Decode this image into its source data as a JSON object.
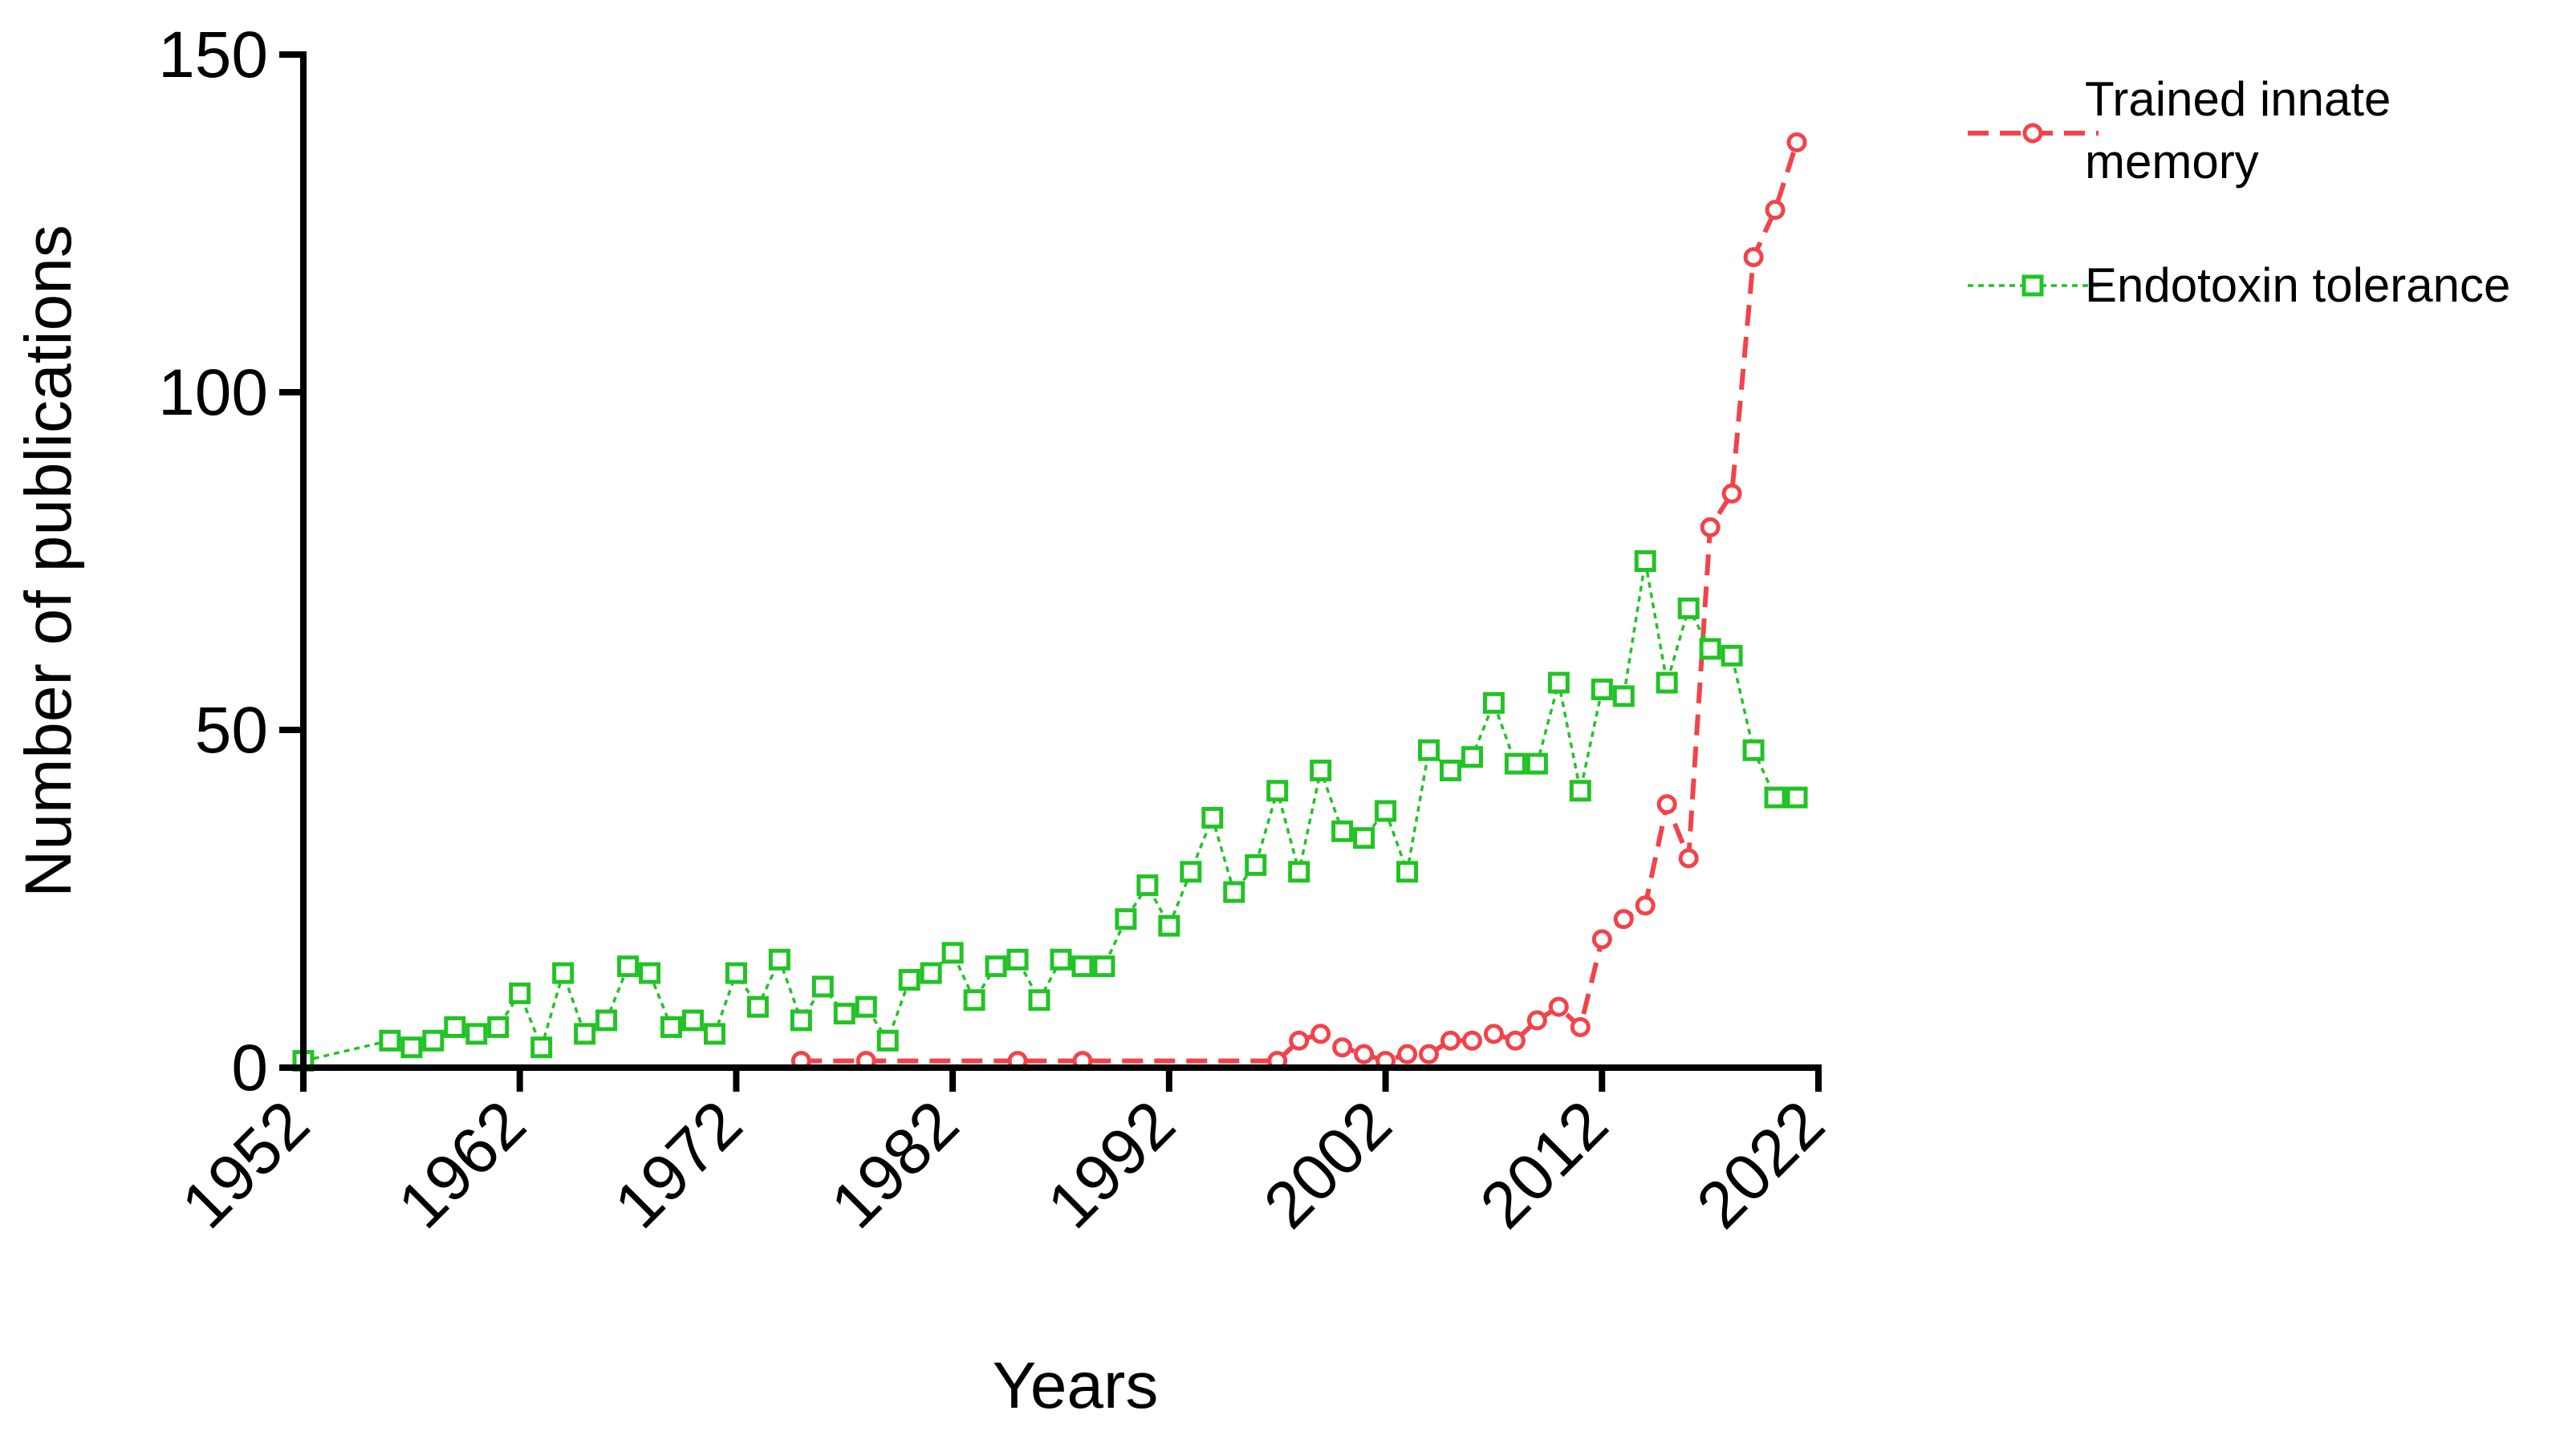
{
  "chart_data": {
    "type": "line",
    "title": "",
    "xlabel": "Years",
    "ylabel": "Number of publications",
    "xlim": [
      1952,
      2022
    ],
    "ylim": [
      0,
      150
    ],
    "x_ticks": [
      "1952",
      "1962",
      "1972",
      "1982",
      "1992",
      "2002",
      "2012",
      "2022"
    ],
    "y_ticks": [
      "0",
      "50",
      "100",
      "150"
    ],
    "grid": false,
    "legend_position": "top-right",
    "series": [
      {
        "name": "Trained innate memory",
        "color": "#f2434a",
        "marker": "circle",
        "line_style": "dashed",
        "points": [
          [
            1975,
            1
          ],
          [
            1978,
            1
          ],
          [
            1985,
            1
          ],
          [
            1988,
            1
          ],
          [
            1997,
            1
          ],
          [
            1998,
            4
          ],
          [
            1999,
            5
          ],
          [
            2000,
            3
          ],
          [
            2001,
            2
          ],
          [
            2002,
            1
          ],
          [
            2003,
            2
          ],
          [
            2004,
            2
          ],
          [
            2005,
            4
          ],
          [
            2006,
            4
          ],
          [
            2007,
            5
          ],
          [
            2008,
            4
          ],
          [
            2009,
            7
          ],
          [
            2010,
            9
          ],
          [
            2011,
            6
          ],
          [
            2012,
            19
          ],
          [
            2013,
            22
          ],
          [
            2014,
            24
          ],
          [
            2015,
            39
          ],
          [
            2016,
            31
          ],
          [
            2017,
            80
          ],
          [
            2018,
            85
          ],
          [
            2019,
            120
          ],
          [
            2020,
            127
          ],
          [
            2021,
            137
          ]
        ]
      },
      {
        "name": "Endotoxin tolerance",
        "color": "#22c325",
        "marker": "square",
        "line_style": "dotted",
        "points": [
          [
            1952,
            1
          ],
          [
            1956,
            4
          ],
          [
            1957,
            3
          ],
          [
            1958,
            4
          ],
          [
            1959,
            6
          ],
          [
            1960,
            5
          ],
          [
            1961,
            6
          ],
          [
            1962,
            11
          ],
          [
            1963,
            3
          ],
          [
            1964,
            14
          ],
          [
            1965,
            5
          ],
          [
            1966,
            7
          ],
          [
            1967,
            15
          ],
          [
            1968,
            14
          ],
          [
            1969,
            6
          ],
          [
            1970,
            7
          ],
          [
            1971,
            5
          ],
          [
            1972,
            14
          ],
          [
            1973,
            9
          ],
          [
            1974,
            16
          ],
          [
            1975,
            7
          ],
          [
            1976,
            12
          ],
          [
            1977,
            8
          ],
          [
            1978,
            9
          ],
          [
            1979,
            4
          ],
          [
            1980,
            13
          ],
          [
            1981,
            14
          ],
          [
            1982,
            17
          ],
          [
            1983,
            10
          ],
          [
            1984,
            15
          ],
          [
            1985,
            16
          ],
          [
            1986,
            10
          ],
          [
            1987,
            16
          ],
          [
            1988,
            15
          ],
          [
            1989,
            15
          ],
          [
            1990,
            22
          ],
          [
            1991,
            27
          ],
          [
            1992,
            21
          ],
          [
            1993,
            29
          ],
          [
            1994,
            37
          ],
          [
            1995,
            26
          ],
          [
            1996,
            30
          ],
          [
            1997,
            41
          ],
          [
            1998,
            29
          ],
          [
            1999,
            44
          ],
          [
            2000,
            35
          ],
          [
            2001,
            34
          ],
          [
            2002,
            38
          ],
          [
            2003,
            29
          ],
          [
            2004,
            47
          ],
          [
            2005,
            44
          ],
          [
            2006,
            46
          ],
          [
            2007,
            54
          ],
          [
            2008,
            45
          ],
          [
            2009,
            45
          ],
          [
            2010,
            57
          ],
          [
            2011,
            41
          ],
          [
            2012,
            56
          ],
          [
            2013,
            55
          ],
          [
            2014,
            75
          ],
          [
            2015,
            57
          ],
          [
            2016,
            68
          ],
          [
            2017,
            62
          ],
          [
            2018,
            61
          ],
          [
            2019,
            47
          ],
          [
            2020,
            40
          ],
          [
            2021,
            40
          ]
        ]
      }
    ]
  }
}
